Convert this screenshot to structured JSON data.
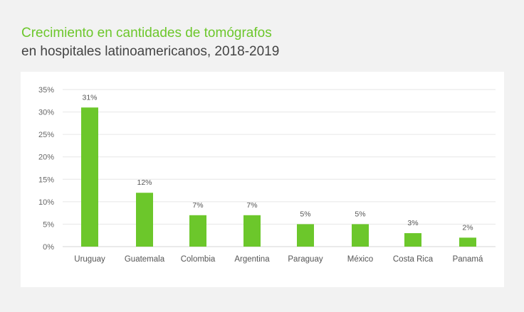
{
  "header": {
    "title": "Crecimiento en cantidades de tomógrafos",
    "subtitle": "en hospitales latinoamericanos, 2018-2019"
  },
  "colors": {
    "accent": "#6cc72b",
    "bar": "#6cc72b",
    "grid": "#e6e6e6",
    "background": "#f2f2f2",
    "panel": "#ffffff"
  },
  "chart_data": {
    "type": "bar",
    "title": "Crecimiento en cantidades de tomógrafos",
    "subtitle": "en hospitales latinoamericanos, 2018-2019",
    "xlabel": "",
    "ylabel": "",
    "categories": [
      "Uruguay",
      "Guatemala",
      "Colombia",
      "Argentina",
      "Paraguay",
      "México",
      "Costa Rica",
      "Panamá"
    ],
    "values": [
      31,
      12,
      7,
      7,
      5,
      5,
      3,
      2
    ],
    "data_labels": [
      "31%",
      "12%",
      "7%",
      "7%",
      "5%",
      "5%",
      "3%",
      "2%"
    ],
    "ylim": [
      0,
      35
    ],
    "yticks": [
      0,
      5,
      10,
      15,
      20,
      25,
      30,
      35
    ],
    "ytick_labels": [
      "0%",
      "5%",
      "10%",
      "15%",
      "20%",
      "25%",
      "30%",
      "35%"
    ],
    "grid": true,
    "legend": "none"
  }
}
